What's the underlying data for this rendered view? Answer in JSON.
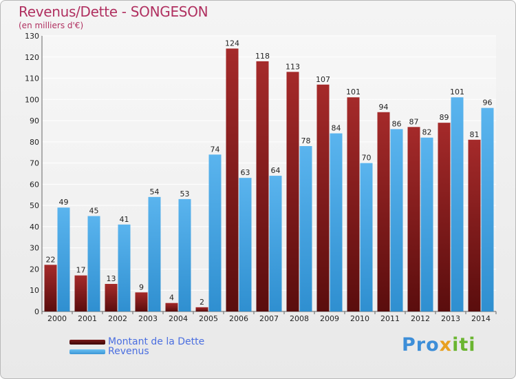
{
  "title": "Revenus/Dette - SONGESON",
  "subtitle": "(en milliers d'€)",
  "logo": {
    "parts": [
      "Pro",
      "x",
      "iti"
    ]
  },
  "colors": {
    "dette_top": "#a52a2a",
    "dette_bottom": "#5a0d0d",
    "revenus_top": "#5ab4ee",
    "revenus_bottom": "#2f8fd0",
    "axis_text": "#222222",
    "logo_pro": "#3d8ed8",
    "logo_x": "#e8a020",
    "logo_iti": "#6ab530"
  },
  "chart_data": {
    "type": "bar",
    "title": "Revenus/Dette - SONGESON",
    "subtitle": "(en milliers d'€)",
    "categories": [
      "2000",
      "2001",
      "2002",
      "2003",
      "2004",
      "2005",
      "2006",
      "2007",
      "2008",
      "2009",
      "2010",
      "2011",
      "2012",
      "2013",
      "2014"
    ],
    "series": [
      {
        "name": "Montant de la Dette",
        "values": [
          22,
          17,
          13,
          9,
          4,
          2,
          124,
          118,
          113,
          107,
          101,
          94,
          87,
          89,
          81
        ]
      },
      {
        "name": "Revenus",
        "values": [
          49,
          45,
          41,
          54,
          53,
          74,
          63,
          64,
          78,
          84,
          70,
          86,
          82,
          101,
          96
        ]
      }
    ],
    "ylim": [
      0,
      130
    ],
    "yticks": [
      0,
      10,
      20,
      30,
      40,
      50,
      60,
      70,
      80,
      90,
      100,
      110,
      120,
      130
    ],
    "grid": true,
    "legend": "bottom-left"
  }
}
